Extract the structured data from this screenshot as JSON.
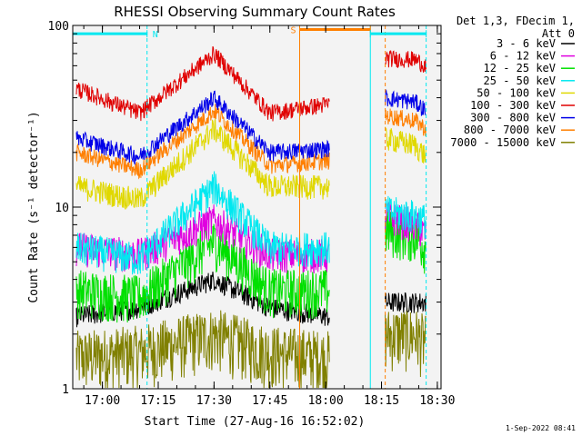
{
  "chart_data": {
    "type": "line",
    "title": "RHESSI Observing Summary Count Rates",
    "xlabel": "Start Time (27-Aug-16 16:52:02)",
    "ylabel": "Count Rate (s⁻¹ detector⁻¹)",
    "yscale": "log",
    "ylim": [
      1,
      100
    ],
    "xlim": [
      "16:52:02",
      "18:31:00"
    ],
    "x_ticks": [
      "17:00",
      "17:15",
      "17:30",
      "17:45",
      "18:00",
      "18:15",
      "18:30"
    ],
    "y_ticks": [
      "1",
      "10",
      "100"
    ],
    "grid": false,
    "legend": {
      "placement": "right",
      "header": [
        "Det 1,3, FDecim 1,",
        "Att 0"
      ],
      "entries": [
        {
          "label": "3 - 6 keV",
          "color": "#000000"
        },
        {
          "label": "6 - 12 keV",
          "color": "#e000e0"
        },
        {
          "label": "12 - 25 keV",
          "color": "#00e000"
        },
        {
          "label": "25 - 50 keV",
          "color": "#00e8f0"
        },
        {
          "label": "50 - 100 keV",
          "color": "#e0d800"
        },
        {
          "label": "100 - 300 keV",
          "color": "#e00000"
        },
        {
          "label": "300 - 800 keV",
          "color": "#0000e8"
        },
        {
          "label": "800 - 7000 keV",
          "color": "#ff7f00"
        },
        {
          "label": "7000 - 15000 keV",
          "color": "#808000"
        }
      ]
    },
    "data_gaps": [
      [
        "18:01",
        "18:16"
      ]
    ],
    "series": [
      {
        "name": "3 - 6 keV",
        "color": "#000000",
        "x": [
          "16:53",
          "17:10",
          "17:30",
          "17:45",
          "18:01",
          "18:16",
          "18:24",
          "18:27"
        ],
        "y": [
          2.5,
          2.8,
          4.0,
          2.8,
          2.5,
          3.0,
          3.0,
          3.0
        ]
      },
      {
        "name": "6 - 12 keV",
        "color": "#e000e0",
        "x": [
          "16:53",
          "17:10",
          "17:30",
          "17:45",
          "18:01",
          "18:16",
          "18:24",
          "18:27"
        ],
        "y": [
          6.0,
          5.5,
          8.5,
          5.5,
          5.5,
          9.0,
          8.0,
          7.0
        ]
      },
      {
        "name": "12 - 25 keV",
        "color": "#00e000",
        "x": [
          "16:53",
          "17:10",
          "17:30",
          "17:45",
          "18:01",
          "18:16",
          "18:24",
          "18:27"
        ],
        "y": [
          3.5,
          3.2,
          6.5,
          3.5,
          3.5,
          7.5,
          7.0,
          6.0
        ]
      },
      {
        "name": "25 - 50 keV",
        "color": "#00e8f0",
        "x": [
          "16:53",
          "17:10",
          "17:30",
          "17:45",
          "18:01",
          "18:16",
          "18:24",
          "18:27"
        ],
        "y": [
          6.0,
          5.2,
          13.0,
          6.0,
          6.0,
          9.5,
          9.0,
          8.5
        ]
      },
      {
        "name": "50 - 100 keV",
        "color": "#e0d800",
        "x": [
          "16:53",
          "17:10",
          "17:30",
          "17:45",
          "18:01",
          "18:16",
          "18:24",
          "18:27"
        ],
        "y": [
          13.0,
          11.0,
          27.0,
          13.0,
          13.0,
          24.0,
          22.0,
          19.0
        ]
      },
      {
        "name": "100 - 300 keV",
        "color": "#e00000",
        "x": [
          "16:53",
          "17:10",
          "17:30",
          "17:45",
          "18:01",
          "18:16",
          "18:24",
          "18:27"
        ],
        "y": [
          45.0,
          33.0,
          70.0,
          33.0,
          37.0,
          66.0,
          65.0,
          60.0
        ]
      },
      {
        "name": "300 - 800 keV",
        "color": "#0000e8",
        "x": [
          "16:53",
          "17:10",
          "17:30",
          "17:45",
          "18:01",
          "18:16",
          "18:24",
          "18:27"
        ],
        "y": [
          24.0,
          19.0,
          40.0,
          20.0,
          21.0,
          40.0,
          38.0,
          34.0
        ]
      },
      {
        "name": "800 - 7000 keV",
        "color": "#ff7f00",
        "x": [
          "16:53",
          "17:10",
          "17:30",
          "17:45",
          "18:01",
          "18:16",
          "18:24",
          "18:27"
        ],
        "y": [
          20.0,
          16.0,
          34.0,
          17.0,
          18.0,
          32.0,
          30.0,
          27.0
        ]
      },
      {
        "name": "7000 - 15000 keV",
        "color": "#808000",
        "x": [
          "16:53",
          "17:10",
          "17:30",
          "17:45",
          "18:01",
          "18:16",
          "18:24",
          "18:27"
        ],
        "y": [
          1.5,
          1.6,
          2.0,
          1.6,
          1.5,
          2.0,
          2.0,
          1.8
        ]
      }
    ],
    "annotations": [
      {
        "label": "N",
        "color": "#00e8f0",
        "x_range": [
          "16:52:02",
          "17:12"
        ],
        "y": 90
      },
      {
        "label": "S",
        "color": "#ff7f00",
        "x_range": [
          "17:53",
          "18:12"
        ],
        "y": 95
      },
      {
        "label": "",
        "color": "#00e8f0",
        "x_range": [
          "18:12",
          "18:27"
        ],
        "y": 90
      }
    ],
    "vertical_lines": [
      {
        "x": "17:12",
        "color": "#00e8f0",
        "style": "dashed"
      },
      {
        "x": "17:53",
        "color": "#ff7f00",
        "style": "solid"
      },
      {
        "x": "18:12",
        "color": "#00e8f0",
        "style": "solid"
      },
      {
        "x": "18:16",
        "color": "#ff7f00",
        "style": "dashed"
      },
      {
        "x": "18:27",
        "color": "#00e8f0",
        "style": "dashed"
      }
    ],
    "footer": "1-Sep-2022 08:41"
  }
}
